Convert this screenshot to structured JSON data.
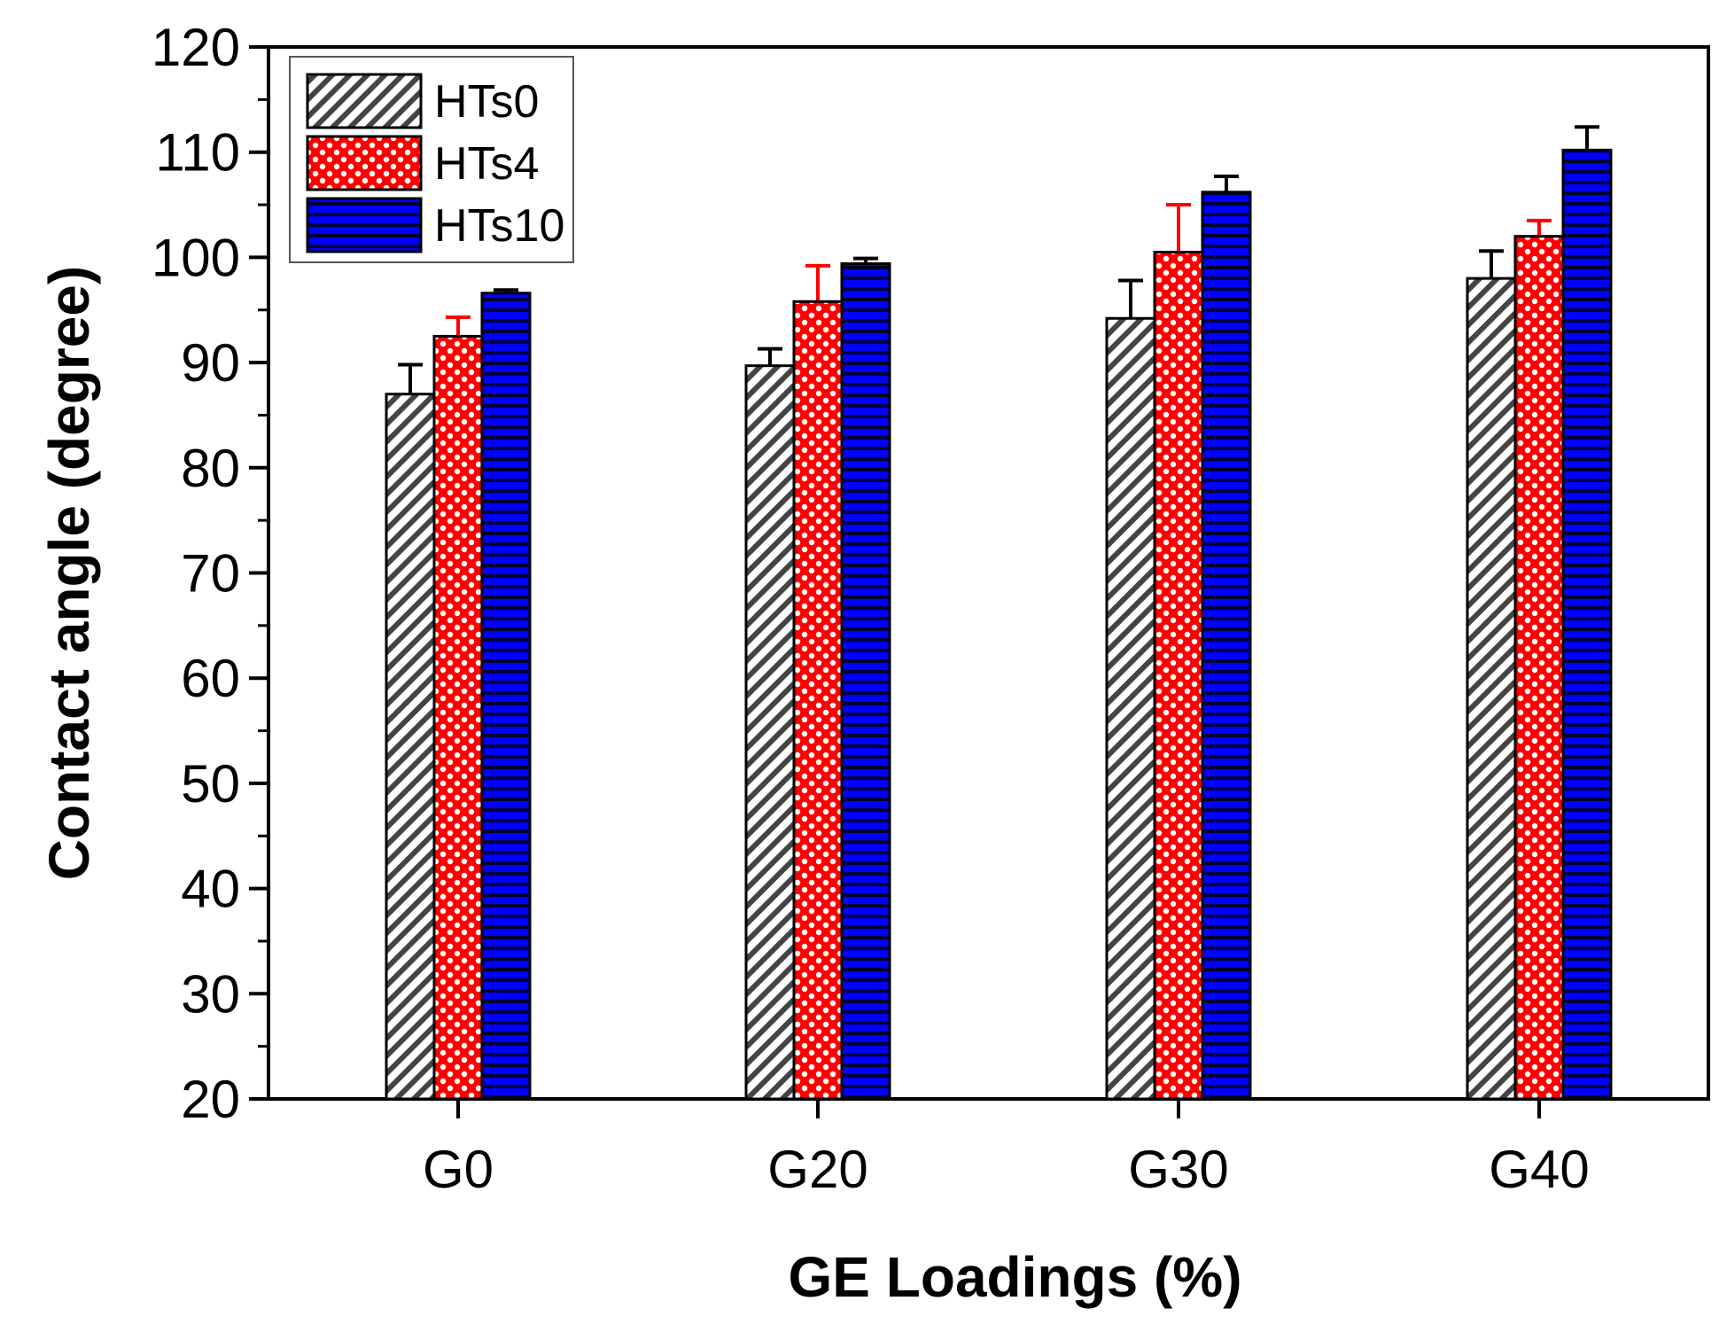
{
  "chart_data": {
    "type": "bar",
    "title": "",
    "xlabel": "GE  Loadings (%)",
    "ylabel": "Contact angle (degree)",
    "ylim": [
      20,
      120
    ],
    "yticks": [
      20,
      30,
      40,
      50,
      60,
      70,
      80,
      90,
      100,
      110,
      120
    ],
    "categories": [
      "G0",
      "G20",
      "G30",
      "G40"
    ],
    "legend_position": "top-left",
    "grid": false,
    "series": [
      {
        "name": "HTs0",
        "color": "#ffffff",
        "pattern": "diagonal-hatch",
        "values": [
          87.0,
          89.7,
          94.2,
          98.0
        ],
        "errors": [
          2.8,
          1.6,
          3.6,
          2.6
        ]
      },
      {
        "name": "HTs4",
        "color": "#ff0000",
        "pattern": "dots",
        "values": [
          92.5,
          95.8,
          100.5,
          102.0
        ],
        "errors": [
          1.8,
          3.4,
          4.5,
          1.5
        ]
      },
      {
        "name": "HTs10",
        "color": "#0000ff",
        "pattern": "horizontal-lines",
        "values": [
          96.6,
          99.4,
          106.2,
          110.2
        ],
        "errors": [
          0.3,
          0.5,
          1.5,
          2.2
        ]
      }
    ]
  }
}
